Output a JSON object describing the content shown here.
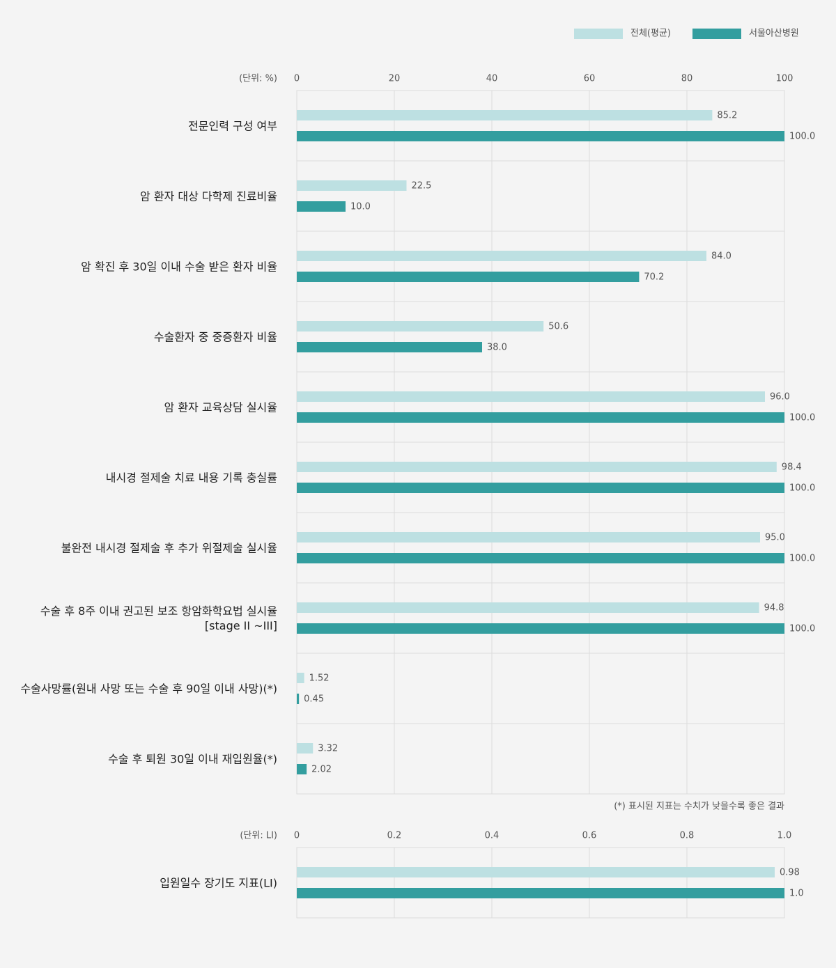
{
  "chart_data": [
    {
      "type": "bar",
      "orientation": "horizontal",
      "unit_label": "(단위: %)",
      "categories": [
        "전문인력 구성 여부",
        "암 환자 대상 다학제 진료비율",
        "암 확진 후 30일 이내 수술 받은 환자 비율",
        "수술환자 중 중증환자 비율",
        "암 환자 교육상담 실시율",
        "내시경 절제술 치료 내용 기록 충실률",
        "불완전 내시경 절제술 후 추가 위절제술 실시율",
        "수술 후 8주 이내 권고된 보조 항암화학요법 실시율\n[stage II ~III]",
        "수술사망률(원내 사망 또는 수술 후 90일 이내 사망)(*)",
        "수술 후 퇴원 30일 이내 재입원율(*)"
      ],
      "series": [
        {
          "name": "전체(평균)",
          "color": "#bde0e2",
          "values": [
            85.2,
            22.5,
            84.0,
            50.6,
            96.0,
            98.4,
            95.0,
            94.8,
            1.52,
            3.32
          ],
          "value_labels": [
            "85.2",
            "22.5",
            "84.0",
            "50.6",
            "96.0",
            "98.4",
            "95.0",
            "94.8",
            "1.52",
            "3.32"
          ]
        },
        {
          "name": "서울아산병원",
          "color": "#339e9f",
          "values": [
            100.0,
            10.0,
            70.2,
            38.0,
            100.0,
            100.0,
            100.0,
            100.0,
            0.45,
            2.02
          ],
          "value_labels": [
            "100.0",
            "10.0",
            "70.2",
            "38.0",
            "100.0",
            "100.0",
            "100.0",
            "100.0",
            "0.45",
            "2.02"
          ]
        }
      ],
      "xlim": [
        0,
        100
      ],
      "xticks": [
        0,
        20,
        40,
        60,
        80,
        100
      ],
      "grid": true,
      "legend": "top-right",
      "footnote": "(*) 표시된 지표는 수치가 낮을수록 좋은 결과"
    },
    {
      "type": "bar",
      "orientation": "horizontal",
      "unit_label": "(단위: LI)",
      "categories": [
        "입원일수 장기도 지표(LI)"
      ],
      "series": [
        {
          "color": "#bde0e2",
          "values": [
            0.98
          ],
          "value_labels": [
            "0.98"
          ]
        },
        {
          "color": "#339e9f",
          "values": [
            1.0
          ],
          "value_labels": [
            "1.0"
          ]
        }
      ],
      "xlim": [
        0,
        1
      ],
      "xticks": [
        0,
        0.2,
        0.4,
        0.6,
        0.8,
        {
          "value": 1,
          "label": "1.0"
        }
      ],
      "grid": true
    }
  ]
}
